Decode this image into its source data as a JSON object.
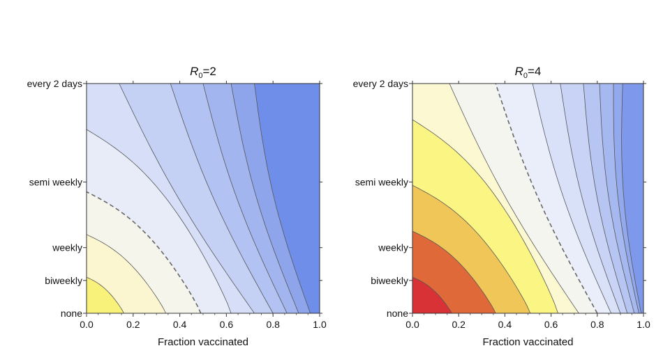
{
  "chart_data": [
    {
      "type": "contour",
      "title": "R0=2",
      "title_main": "R",
      "title_sub": "0",
      "title_suffix": "=2",
      "xlabel": "Fraction vaccinated",
      "ylabel": "",
      "xlim": [
        0,
        1
      ],
      "x_ticks": [
        "0.0",
        "0.2",
        "0.4",
        "0.6",
        "0.8",
        "1.0"
      ],
      "y_ticks": [
        "none",
        "biweekly",
        "weekly",
        "semi weekly",
        "every 2 days"
      ],
      "y_tick_units": [
        0,
        0.5,
        1,
        2,
        3.5
      ],
      "contours": [
        {
          "x_at_none": 0.16,
          "x_at_top": null,
          "y_left": 0.55,
          "style": "solid"
        },
        {
          "x_at_none": 0.34,
          "x_at_top": null,
          "y_left": 1.2,
          "style": "solid"
        },
        {
          "x_at_none": 0.49,
          "x_at_top": null,
          "y_left": 1.85,
          "style": "dashed"
        },
        {
          "x_at_none": 0.62,
          "x_at_top": null,
          "y_left": 2.8,
          "style": "solid"
        },
        {
          "x_at_none": 0.72,
          "x_at_top": 0.14,
          "style": "solid"
        },
        {
          "x_at_none": 0.8,
          "x_at_top": 0.36,
          "style": "solid"
        },
        {
          "x_at_none": 0.86,
          "x_at_top": 0.5,
          "style": "solid"
        },
        {
          "x_at_none": 0.91,
          "x_at_top": 0.62,
          "style": "solid"
        },
        {
          "x_at_none": 0.96,
          "x_at_top": 0.72,
          "style": "solid"
        }
      ],
      "band_colors": [
        "#f9f27a",
        "#fbf6cf",
        "#f5f5ec",
        "#e8ecf8",
        "#d6dff7",
        "#c4d0f4",
        "#b2c2f2",
        "#a2b5ef",
        "#8ea5ec",
        "#6e8eea"
      ]
    },
    {
      "type": "contour",
      "title": "R0=4",
      "title_main": "R",
      "title_sub": "0",
      "title_suffix": "=4",
      "xlabel": "Fraction vaccinated",
      "ylabel": "",
      "xlim": [
        0,
        1
      ],
      "x_ticks": [
        "0.0",
        "0.2",
        "0.4",
        "0.6",
        "0.8",
        "1.0"
      ],
      "y_ticks": [
        "none",
        "biweekly",
        "weekly",
        "semi weekly",
        "every 2 days"
      ],
      "y_tick_units": [
        0,
        0.5,
        1,
        2,
        3.5
      ],
      "contours": [
        {
          "x_at_none": 0.17,
          "x_at_top": null,
          "y_left": 0.55,
          "style": "solid"
        },
        {
          "x_at_none": 0.36,
          "x_at_top": null,
          "y_left": 1.25,
          "style": "solid"
        },
        {
          "x_at_none": 0.51,
          "x_at_top": null,
          "y_left": 1.95,
          "style": "solid"
        },
        {
          "x_at_none": 0.63,
          "x_at_top": null,
          "y_left": 2.95,
          "style": "solid"
        },
        {
          "x_at_none": 0.72,
          "x_at_top": 0.16,
          "style": "solid"
        },
        {
          "x_at_none": 0.8,
          "x_at_top": 0.36,
          "style": "dashed"
        },
        {
          "x_at_none": 0.86,
          "x_at_top": 0.52,
          "style": "solid"
        },
        {
          "x_at_none": 0.9,
          "x_at_top": 0.64,
          "style": "solid"
        },
        {
          "x_at_none": 0.93,
          "x_at_top": 0.74,
          "style": "solid"
        },
        {
          "x_at_none": 0.96,
          "x_at_top": 0.81,
          "style": "solid"
        },
        {
          "x_at_none": 0.98,
          "x_at_top": 0.87,
          "style": "solid"
        },
        {
          "x_at_none": 0.99,
          "x_at_top": 0.91,
          "style": "solid"
        }
      ],
      "band_colors": [
        "#d93236",
        "#e0693a",
        "#f1c659",
        "#fbf583",
        "#fbf8d2",
        "#f4f5ef",
        "#e9eefa",
        "#d9e1f8",
        "#c8d3f5",
        "#b6c5f2",
        "#a6b8f0",
        "#93a9ed",
        "#7e98eb"
      ]
    }
  ]
}
